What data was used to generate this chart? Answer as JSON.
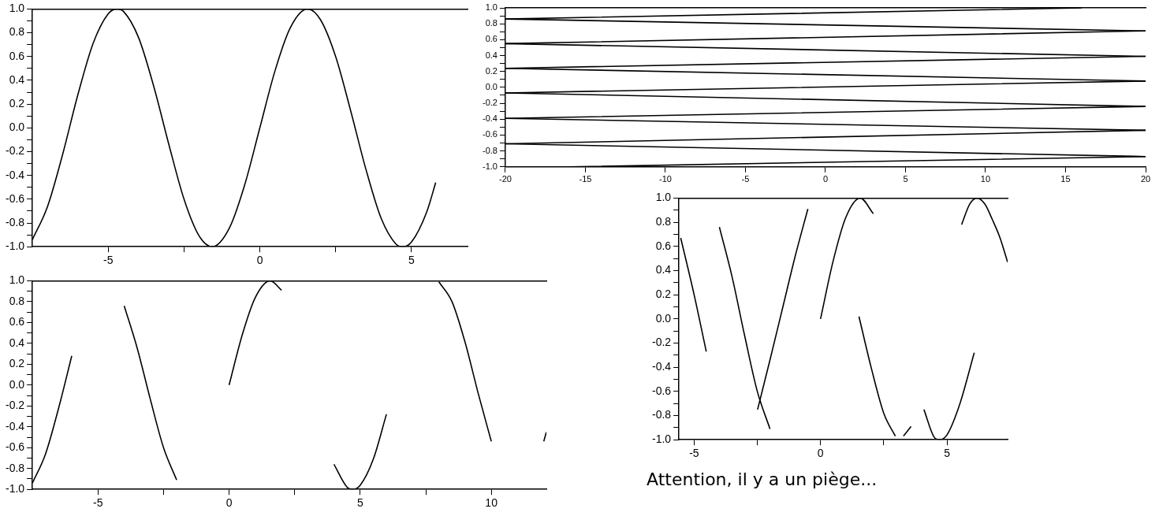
{
  "chart_data": [
    {
      "type": "line",
      "marker": "none",
      "xlim": [
        -7.5,
        6.85
      ],
      "ylim": [
        -1,
        1
      ],
      "xticks": [
        -5,
        {
          "value": -2.5,
          "label": null
        },
        0,
        {
          "value": 2.5,
          "label": null
        },
        5
      ],
      "yticks": [
        {
          "value": -1,
          "label": "-1.0"
        },
        {
          "value": -0.9,
          "label": null
        },
        {
          "value": -0.8,
          "label": "-0.8"
        },
        {
          "value": -0.7,
          "label": null
        },
        {
          "value": -0.6,
          "label": "-0.6"
        },
        {
          "value": -0.5,
          "label": null
        },
        {
          "value": -0.4,
          "label": "-0.4"
        },
        {
          "value": -0.3,
          "label": null
        },
        {
          "value": -0.2,
          "label": "-0.2"
        },
        {
          "value": -0.1,
          "label": null
        },
        {
          "value": 0,
          "label": "0.0"
        },
        {
          "value": 0.1,
          "label": null
        },
        {
          "value": 0.2,
          "label": "0.2"
        },
        {
          "value": 0.3,
          "label": null
        },
        {
          "value": 0.4,
          "label": "0.4"
        },
        {
          "value": 0.5,
          "label": null
        },
        {
          "value": 0.6,
          "label": "0.6"
        },
        {
          "value": 0.7,
          "label": null
        },
        {
          "value": 0.8,
          "label": "0.8"
        },
        {
          "value": 0.9,
          "label": null
        },
        {
          "value": 1,
          "label": "1.0"
        }
      ],
      "series": [
        {
          "color": "#000000",
          "x": [
            -7.5,
            -7,
            -6.5,
            -6,
            -5.5,
            -5,
            -4.71,
            -4.5,
            -4,
            -3.5,
            -3,
            -2.5,
            -2,
            -1.57,
            -1,
            -0.5,
            0,
            0.5,
            1,
            1.57,
            2,
            2.5,
            3,
            3.5,
            4,
            4.5,
            4.71,
            5,
            5.5,
            5.8
          ],
          "values": [
            -0.94,
            -0.66,
            -0.22,
            0.28,
            0.71,
            0.96,
            1,
            0.98,
            0.76,
            0.35,
            -0.14,
            -0.6,
            -0.91,
            -1,
            -0.84,
            -0.48,
            0,
            0.48,
            0.84,
            1,
            0.91,
            0.6,
            0.14,
            -0.35,
            -0.76,
            -0.98,
            -1,
            -0.96,
            -0.71,
            -0.46
          ]
        }
      ]
    },
    {
      "type": "line",
      "marker": "none",
      "xlim": [
        -20,
        20
      ],
      "ylim": [
        -1,
        1
      ],
      "xticks": [
        -20,
        -15,
        -10,
        -5,
        0,
        5,
        10,
        15,
        20
      ],
      "yticks": [
        {
          "value": -1,
          "label": "-1.0"
        },
        {
          "value": -0.9,
          "label": null
        },
        {
          "value": -0.8,
          "label": "-0.8"
        },
        {
          "value": -0.7,
          "label": null
        },
        {
          "value": -0.6,
          "label": "-0.6"
        },
        {
          "value": -0.5,
          "label": null
        },
        {
          "value": -0.4,
          "label": "-0.4"
        },
        {
          "value": -0.3,
          "label": null
        },
        {
          "value": -0.2,
          "label": "-0.2"
        },
        {
          "value": -0.1,
          "label": null
        },
        {
          "value": 0,
          "label": "0.0"
        },
        {
          "value": 0.1,
          "label": null
        },
        {
          "value": 0.2,
          "label": "0.2"
        },
        {
          "value": 0.3,
          "label": null
        },
        {
          "value": 0.4,
          "label": "0.4"
        },
        {
          "value": 0.5,
          "label": null
        },
        {
          "value": 0.6,
          "label": "0.6"
        },
        {
          "value": 0.7,
          "label": null
        },
        {
          "value": 0.8,
          "label": "0.8"
        },
        {
          "value": 0.9,
          "label": null
        },
        {
          "value": 1,
          "label": "1.0"
        }
      ],
      "series": [
        {
          "color": "#000000",
          "x": [
            -20,
            20
          ],
          "values": [
            0.86,
            0.71
          ]
        },
        {
          "color": "#000000",
          "x": [
            -20,
            20
          ],
          "values": [
            0.55,
            0.39
          ]
        },
        {
          "color": "#000000",
          "x": [
            -20,
            20
          ],
          "values": [
            0.24,
            0.08
          ]
        },
        {
          "color": "#000000",
          "x": [
            -20,
            20
          ],
          "values": [
            -0.07,
            -0.24
          ]
        },
        {
          "color": "#000000",
          "x": [
            -20,
            20
          ],
          "values": [
            -0.39,
            -0.54
          ]
        },
        {
          "color": "#000000",
          "x": [
            -20,
            20
          ],
          "values": [
            -0.71,
            -0.87
          ]
        },
        {
          "color": "#000000",
          "x": [
            -20,
            16
          ],
          "values": [
            0.86,
            1
          ]
        },
        {
          "color": "#000000",
          "x": [
            -20,
            20
          ],
          "values": [
            0.55,
            0.71
          ]
        },
        {
          "color": "#000000",
          "x": [
            -20,
            20
          ],
          "values": [
            0.24,
            0.39
          ]
        },
        {
          "color": "#000000",
          "x": [
            -20,
            20
          ],
          "values": [
            -0.07,
            0.08
          ]
        },
        {
          "color": "#000000",
          "x": [
            -20,
            20
          ],
          "values": [
            -0.39,
            -0.24
          ]
        },
        {
          "color": "#000000",
          "x": [
            -20,
            20
          ],
          "values": [
            -0.71,
            -0.54
          ]
        },
        {
          "color": "#000000",
          "x": [
            -16,
            20
          ],
          "values": [
            -1,
            -0.87
          ]
        }
      ]
    },
    {
      "type": "line",
      "marker": "none",
      "xlim": [
        -7.5,
        12.1
      ],
      "ylim": [
        -1,
        1
      ],
      "xticks": [
        -5,
        {
          "value": -2.5,
          "label": null
        },
        0,
        {
          "value": 2.5,
          "label": null
        },
        5,
        {
          "value": 7.5,
          "label": null
        },
        10
      ],
      "yticks": [
        {
          "value": -1,
          "label": "-1.0"
        },
        {
          "value": -0.9,
          "label": null
        },
        {
          "value": -0.8,
          "label": "-0.8"
        },
        {
          "value": -0.7,
          "label": null
        },
        {
          "value": -0.6,
          "label": "-0.6"
        },
        {
          "value": -0.5,
          "label": null
        },
        {
          "value": -0.4,
          "label": "-0.4"
        },
        {
          "value": -0.3,
          "label": null
        },
        {
          "value": -0.2,
          "label": "-0.2"
        },
        {
          "value": -0.1,
          "label": null
        },
        {
          "value": 0,
          "label": "0.0"
        },
        {
          "value": 0.1,
          "label": null
        },
        {
          "value": 0.2,
          "label": "0.2"
        },
        {
          "value": 0.3,
          "label": null
        },
        {
          "value": 0.4,
          "label": "0.4"
        },
        {
          "value": 0.5,
          "label": null
        },
        {
          "value": 0.6,
          "label": "0.6"
        },
        {
          "value": 0.7,
          "label": null
        },
        {
          "value": 0.8,
          "label": "0.8"
        },
        {
          "value": 0.9,
          "label": null
        },
        {
          "value": 1,
          "label": "1.0"
        }
      ],
      "series": [
        {
          "color": "#000000",
          "x": [
            -7.5,
            -7,
            -6.5,
            -6
          ],
          "values": [
            -0.94,
            -0.66,
            -0.22,
            0.28
          ]
        },
        {
          "color": "#000000",
          "x": [
            -4,
            -3.5,
            -3,
            -2.5,
            -2
          ],
          "values": [
            0.76,
            0.35,
            -0.14,
            -0.6,
            -0.91
          ]
        },
        {
          "color": "#000000",
          "x": [
            0,
            0.5,
            1,
            1.57,
            2
          ],
          "values": [
            0,
            0.48,
            0.84,
            1,
            0.91
          ]
        },
        {
          "color": "#000000",
          "x": [
            4,
            4.5,
            4.71,
            5,
            5.5,
            6
          ],
          "values": [
            -0.76,
            -0.98,
            -1,
            -0.96,
            -0.71,
            -0.28
          ]
        },
        {
          "color": "#000000",
          "x": [
            8,
            8.5,
            9,
            9.5,
            10
          ],
          "values": [
            0.99,
            0.8,
            0.41,
            -0.08,
            -0.54
          ]
        },
        {
          "color": "#000000",
          "x": [
            12,
            12.1
          ],
          "values": [
            -0.54,
            -0.45
          ]
        }
      ]
    },
    {
      "type": "line",
      "marker": "none",
      "xlim": [
        -5.6,
        7.4
      ],
      "ylim": [
        -1,
        1
      ],
      "xticks": [
        -5,
        {
          "value": -2.5,
          "label": null
        },
        0,
        {
          "value": 2.5,
          "label": null
        },
        5
      ],
      "yticks": [
        {
          "value": -1,
          "label": "-1.0"
        },
        {
          "value": -0.9,
          "label": null
        },
        {
          "value": -0.8,
          "label": "-0.8"
        },
        {
          "value": -0.7,
          "label": null
        },
        {
          "value": -0.6,
          "label": "-0.6"
        },
        {
          "value": -0.5,
          "label": null
        },
        {
          "value": -0.4,
          "label": "-0.4"
        },
        {
          "value": -0.3,
          "label": null
        },
        {
          "value": -0.2,
          "label": "-0.2"
        },
        {
          "value": -0.1,
          "label": null
        },
        {
          "value": 0,
          "label": "0.0"
        },
        {
          "value": 0.1,
          "label": null
        },
        {
          "value": 0.2,
          "label": "0.2"
        },
        {
          "value": 0.3,
          "label": null
        },
        {
          "value": 0.4,
          "label": "0.4"
        },
        {
          "value": 0.5,
          "label": null
        },
        {
          "value": 0.6,
          "label": "0.6"
        },
        {
          "value": 0.7,
          "label": null
        },
        {
          "value": 0.8,
          "label": "0.8"
        },
        {
          "value": 0.9,
          "label": null
        },
        {
          "value": 1,
          "label": "1.0"
        }
      ],
      "series": [
        {
          "color": "#000000",
          "x": [
            -5.53,
            -5,
            -4.52
          ],
          "values": [
            0.67,
            0.2,
            -0.27
          ]
        },
        {
          "color": "#000000",
          "x": [
            -4,
            -3.5,
            -3,
            -2.5,
            -2
          ],
          "values": [
            0.76,
            0.35,
            -0.14,
            -0.6,
            -0.91
          ]
        },
        {
          "color": "#000000",
          "x": [
            -2.49,
            -2,
            -1.5,
            -1,
            -0.5
          ],
          "values": [
            -0.75,
            -0.34,
            0.09,
            0.52,
            0.91
          ]
        },
        {
          "color": "#000000",
          "x": [
            0,
            0.5,
            1,
            1.57,
            2.09
          ],
          "values": [
            0,
            0.48,
            0.84,
            1,
            0.87
          ]
        },
        {
          "color": "#000000",
          "x": [
            1.52,
            2,
            2.5,
            2.96
          ],
          "values": [
            0.02,
            -0.4,
            -0.78,
            -0.97
          ]
        },
        {
          "color": "#000000",
          "x": [
            3.28,
            3.58
          ],
          "values": [
            -0.97,
            -0.89
          ]
        },
        {
          "color": "#000000",
          "x": [
            4.09,
            4.5,
            4.71,
            5,
            5.5,
            6.08
          ],
          "values": [
            -0.75,
            -0.98,
            -1,
            -0.96,
            -0.71,
            -0.28
          ]
        },
        {
          "color": "#000000",
          "x": [
            5.58,
            5.9,
            6.19,
            6.5,
            6.8,
            7.1,
            7.4
          ],
          "values": [
            0.78,
            0.95,
            1,
            0.95,
            0.82,
            0.67,
            0.47
          ]
        }
      ],
      "annotations": [
        "Attention, il y a un piège..."
      ]
    }
  ]
}
